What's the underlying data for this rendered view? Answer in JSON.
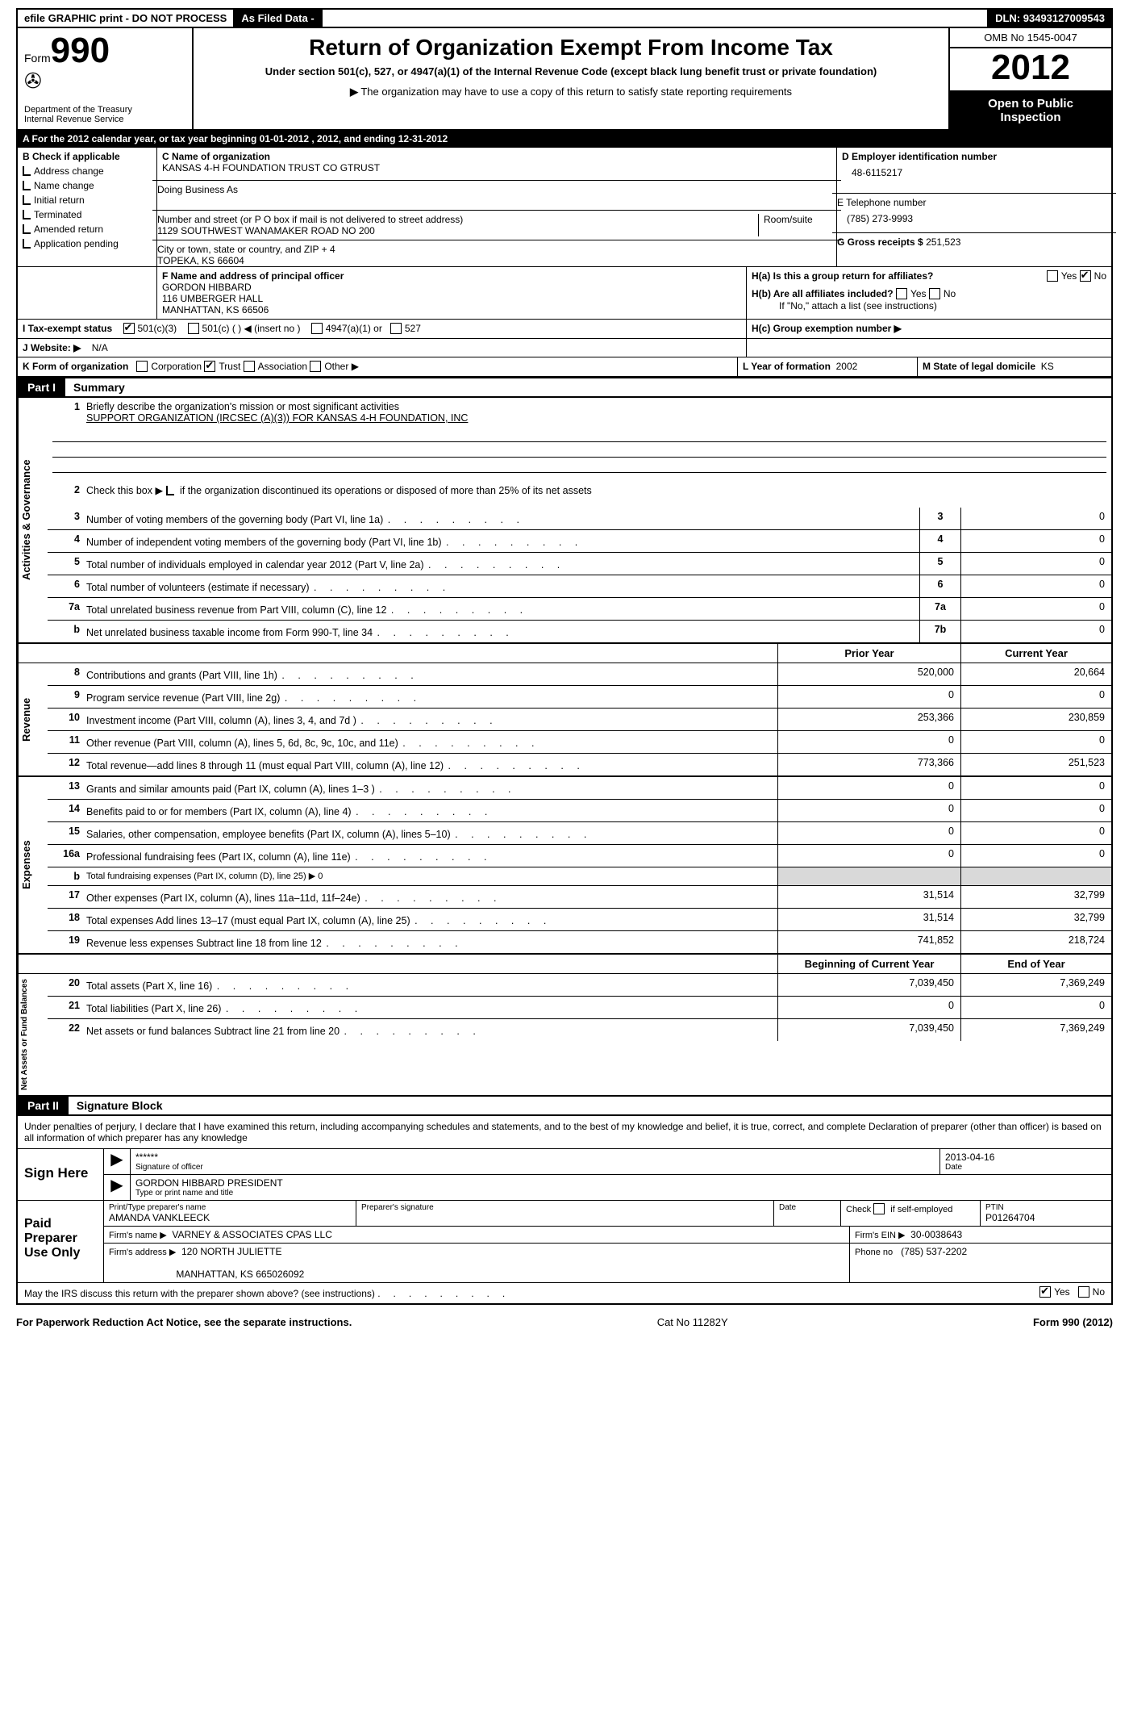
{
  "topbar": {
    "efile": "efile GRAPHIC print - DO NOT PROCESS",
    "asfiled": "As Filed Data -",
    "dln_label": "DLN:",
    "dln": "93493127009543"
  },
  "header": {
    "form_word": "Form",
    "form_number": "990",
    "dept1": "Department of the Treasury",
    "dept2": "Internal Revenue Service",
    "title": "Return of Organization Exempt From Income Tax",
    "subtitle": "Under section 501(c), 527, or 4947(a)(1) of the Internal Revenue Code (except black lung benefit trust or private foundation)",
    "note_arrow": "▶",
    "note": "The organization may have to use a copy of this return to satisfy state reporting requirements",
    "omb": "OMB No 1545-0047",
    "year": "2012",
    "open1": "Open to Public",
    "open2": "Inspection"
  },
  "lineA": "A For the 2012 calendar year, or tax year beginning 01-01-2012    , 2012, and ending 12-31-2012",
  "boxB": {
    "label": "B  Check if applicable",
    "items": [
      "Address change",
      "Name change",
      "Initial return",
      "Terminated",
      "Amended return",
      "Application pending"
    ]
  },
  "boxC": {
    "name_label": "C Name of organization",
    "name": "KANSAS 4-H FOUNDATION TRUST CO GTRUST",
    "dba_label": "Doing Business As",
    "dba": "",
    "street_label": "Number and street (or P O  box if mail is not delivered to street address)",
    "room_label": "Room/suite",
    "street": "1129 SOUTHWEST WANAMAKER ROAD NO 200",
    "city_label": "City or town, state or country, and ZIP + 4",
    "city": "TOPEKA, KS  66604"
  },
  "boxD": {
    "label": "D Employer identification number",
    "ein": "48-6115217"
  },
  "boxE": {
    "label": "E Telephone number",
    "phone": "(785) 273-9993"
  },
  "boxG": {
    "label": "G Gross receipts $",
    "value": "251,523"
  },
  "boxF": {
    "label": "F  Name and address of principal officer",
    "l1": "GORDON HIBBARD",
    "l2": "116 UMBERGER HALL",
    "l3": "MANHATTAN, KS  66506"
  },
  "boxH": {
    "ha": "H(a)  Is this a group return for affiliates?",
    "hb": "H(b)  Are all affiliates included?",
    "hb_note": "If \"No,\" attach a list  (see instructions)",
    "hc": "H(c)   Group exemption number ▶",
    "yes": "Yes",
    "no": "No"
  },
  "lineI": {
    "label": "I    Tax-exempt status",
    "o1": "501(c)(3)",
    "o2": "501(c) (   ) ◀ (insert no )",
    "o3": "4947(a)(1) or",
    "o4": "527"
  },
  "lineJ": {
    "label": "J   Website: ▶",
    "value": "N/A"
  },
  "lineK": {
    "label": "K Form of organization",
    "o1": "Corporation",
    "o2": "Trust",
    "o3": "Association",
    "o4": "Other ▶",
    "l_label": "L Year of formation",
    "l_val": "2002",
    "m_label": "M State of legal domicile",
    "m_val": "KS"
  },
  "part1": {
    "tag": "Part I",
    "title": "Summary",
    "sideA": "Activities & Governance",
    "sideR": "Revenue",
    "sideE": "Expenses",
    "sideN": "Net Assets or Fund Balances",
    "q1": "Briefly describe the organization's mission or most significant activities",
    "q1v": "SUPPORT ORGANIZATION (IRCSEC  (A)(3)) FOR KANSAS 4-H FOUNDATION, INC",
    "q2": "Check this box ▶           if the organization discontinued its operations or disposed of more than 25% of its net assets",
    "rowsAG": [
      {
        "n": "3",
        "t": "Number of voting members of the governing body (Part VI, line 1a)",
        "k": "3",
        "v": "0"
      },
      {
        "n": "4",
        "t": "Number of independent voting members of the governing body (Part VI, line 1b)",
        "k": "4",
        "v": "0"
      },
      {
        "n": "5",
        "t": "Total number of individuals employed in calendar year 2012 (Part V, line 2a)",
        "k": "5",
        "v": "0"
      },
      {
        "n": "6",
        "t": "Total number of volunteers (estimate if necessary)",
        "k": "6",
        "v": "0"
      },
      {
        "n": "7a",
        "t": "Total unrelated business revenue from Part VIII, column (C), line 12",
        "k": "7a",
        "v": "0"
      },
      {
        "n": "b",
        "t": "Net unrelated business taxable income from Form 990-T, line 34",
        "k": "7b",
        "v": "0"
      }
    ],
    "col_prior": "Prior Year",
    "col_current": "Current Year",
    "rowsRev": [
      {
        "n": "8",
        "t": "Contributions and grants (Part VIII, line 1h)",
        "p": "520,000",
        "c": "20,664"
      },
      {
        "n": "9",
        "t": "Program service revenue (Part VIII, line 2g)",
        "p": "0",
        "c": "0"
      },
      {
        "n": "10",
        "t": "Investment income (Part VIII, column (A), lines 3, 4, and 7d )",
        "p": "253,366",
        "c": "230,859"
      },
      {
        "n": "11",
        "t": "Other revenue (Part VIII, column (A), lines 5, 6d, 8c, 9c, 10c, and 11e)",
        "p": "0",
        "c": "0"
      },
      {
        "n": "12",
        "t": "Total revenue—add lines 8 through 11 (must equal Part VIII, column (A), line 12)",
        "p": "773,366",
        "c": "251,523"
      }
    ],
    "rowsExp": [
      {
        "n": "13",
        "t": "Grants and similar amounts paid (Part IX, column (A), lines 1–3 )",
        "p": "0",
        "c": "0"
      },
      {
        "n": "14",
        "t": "Benefits paid to or for members (Part IX, column (A), line 4)",
        "p": "0",
        "c": "0"
      },
      {
        "n": "15",
        "t": "Salaries, other compensation, employee benefits (Part IX, column (A), lines 5–10)",
        "p": "0",
        "c": "0"
      },
      {
        "n": "16a",
        "t": "Professional fundraising fees (Part IX, column (A), line 11e)",
        "p": "0",
        "c": "0"
      },
      {
        "n": "b",
        "t": "Total fundraising expenses (Part IX, column (D), line 25) ▶ 0",
        "p": "",
        "c": "",
        "shade": true,
        "small": true
      },
      {
        "n": "17",
        "t": "Other expenses (Part IX, column (A), lines 11a–11d, 11f–24e)",
        "p": "31,514",
        "c": "32,799"
      },
      {
        "n": "18",
        "t": "Total expenses  Add lines 13–17 (must equal Part IX, column (A), line 25)",
        "p": "31,514",
        "c": "32,799"
      },
      {
        "n": "19",
        "t": "Revenue less expenses  Subtract line 18 from line 12",
        "p": "741,852",
        "c": "218,724"
      }
    ],
    "col_begin": "Beginning of Current Year",
    "col_end": "End of Year",
    "rowsNet": [
      {
        "n": "20",
        "t": "Total assets (Part X, line 16)",
        "p": "7,039,450",
        "c": "7,369,249"
      },
      {
        "n": "21",
        "t": "Total liabilities (Part X, line 26)",
        "p": "0",
        "c": "0"
      },
      {
        "n": "22",
        "t": "Net assets or fund balances  Subtract line 21 from line 20",
        "p": "7,039,450",
        "c": "7,369,249"
      }
    ]
  },
  "part2": {
    "tag": "Part II",
    "title": "Signature Block",
    "intro": "Under penalties of perjury, I declare that I have examined this return, including accompanying schedules and statements, and to the best of my knowledge and belief, it is true, correct, and complete  Declaration of preparer (other than officer) is based on all information of which preparer has any knowledge",
    "sign_here": "Sign Here",
    "stars": "******",
    "sig_officer": "Signature of officer",
    "date": "Date",
    "sig_date": "2013-04-16",
    "officer_name": "GORDON HIBBARD PRESIDENT",
    "type_name": "Type or print name and title",
    "paid": "Paid Preparer Use Only",
    "prep_name_label": "Print/Type preparer's name",
    "prep_name": "AMANDA VANKLEECK",
    "prep_sig_label": "Preparer's signature",
    "check_self": "Check          if self-employed",
    "ptin_label": "PTIN",
    "ptin": "P01264704",
    "firm_name_label": "Firm's name   ▶",
    "firm_name": "VARNEY & ASSOCIATES CPAS LLC",
    "firm_ein_label": "Firm's EIN ▶",
    "firm_ein": "30-0038643",
    "firm_addr_label": "Firm's address ▶",
    "firm_addr1": "120 NORTH JULIETTE",
    "firm_addr2": "MANHATTAN, KS  665026092",
    "phone_label": "Phone no",
    "phone": "(785) 537-2202",
    "discuss": "May the IRS discuss this return with the preparer shown above? (see instructions)",
    "yes": "Yes",
    "no": "No"
  },
  "footer": {
    "left": "For Paperwork Reduction Act Notice, see the separate instructions.",
    "mid": "Cat No 11282Y",
    "right": "Form 990 (2012)"
  }
}
